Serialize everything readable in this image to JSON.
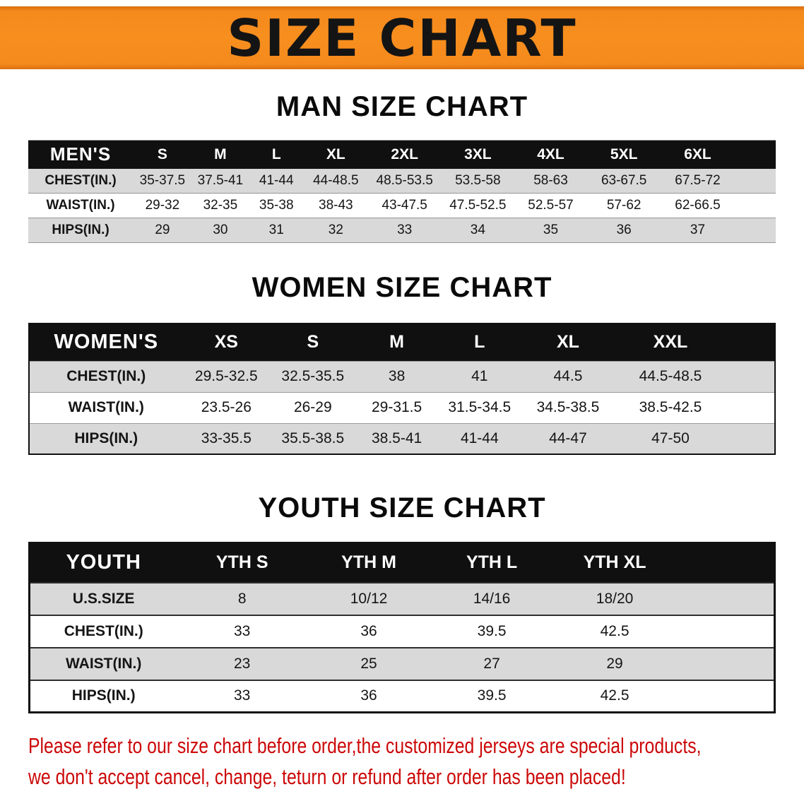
{
  "banner": {
    "title": "SIZE CHART"
  },
  "colors": {
    "banner_orange": "#F78F1E",
    "table_header_black": "#101010",
    "row_stripe_gray": "#D9D9D9",
    "disclaimer_red": "#CC0808"
  },
  "chart_data": [
    {
      "type": "table",
      "title": "MAN SIZE CHART",
      "columns": [
        "MEN'S",
        "S",
        "M",
        "L",
        "XL",
        "2XL",
        "3XL",
        "4XL",
        "5XL",
        "6XL"
      ],
      "rows": [
        [
          "CHEST(IN.)",
          "35-37.5",
          "37.5-41",
          "41-44",
          "44-48.5",
          "48.5-53.5",
          "53.5-58",
          "58-63",
          "63-67.5",
          "67.5-72"
        ],
        [
          "WAIST(IN.)",
          "29-32",
          "32-35",
          "35-38",
          "38-43",
          "43-47.5",
          "47.5-52.5",
          "52.5-57",
          "57-62",
          "62-66.5"
        ],
        [
          "HIPS(IN.)",
          "29",
          "30",
          "31",
          "32",
          "33",
          "34",
          "35",
          "36",
          "37"
        ]
      ]
    },
    {
      "type": "table",
      "title": "WOMEN SIZE CHART",
      "columns": [
        "WOMEN'S",
        "XS",
        "S",
        "M",
        "L",
        "XL",
        "XXL"
      ],
      "rows": [
        [
          "CHEST(IN.)",
          "29.5-32.5",
          "32.5-35.5",
          "38",
          "41",
          "44.5",
          "44.5-48.5"
        ],
        [
          "WAIST(IN.)",
          "23.5-26",
          "26-29",
          "29-31.5",
          "31.5-34.5",
          "34.5-38.5",
          "38.5-42.5"
        ],
        [
          "HIPS(IN.)",
          "33-35.5",
          "35.5-38.5",
          "38.5-41",
          "41-44",
          "44-47",
          "47-50"
        ]
      ]
    },
    {
      "type": "table",
      "title": "YOUTH SIZE CHART",
      "columns": [
        "YOUTH",
        "YTH S",
        "YTH M",
        "YTH L",
        "YTH XL"
      ],
      "rows": [
        [
          "U.S.SIZE",
          "8",
          "10/12",
          "14/16",
          "18/20"
        ],
        [
          "CHEST(IN.)",
          "33",
          "36",
          "39.5",
          "42.5"
        ],
        [
          "WAIST(IN.)",
          "23",
          "25",
          "27",
          "29"
        ],
        [
          "HIPS(IN.)",
          "33",
          "36",
          "39.5",
          "42.5"
        ]
      ]
    }
  ],
  "disclaimer": {
    "lines": [
      "Please refer to our size chart before order,the customized jerseys are special products,",
      "we don't accept cancel, change, teturn or refund after order has been placed!"
    ]
  }
}
